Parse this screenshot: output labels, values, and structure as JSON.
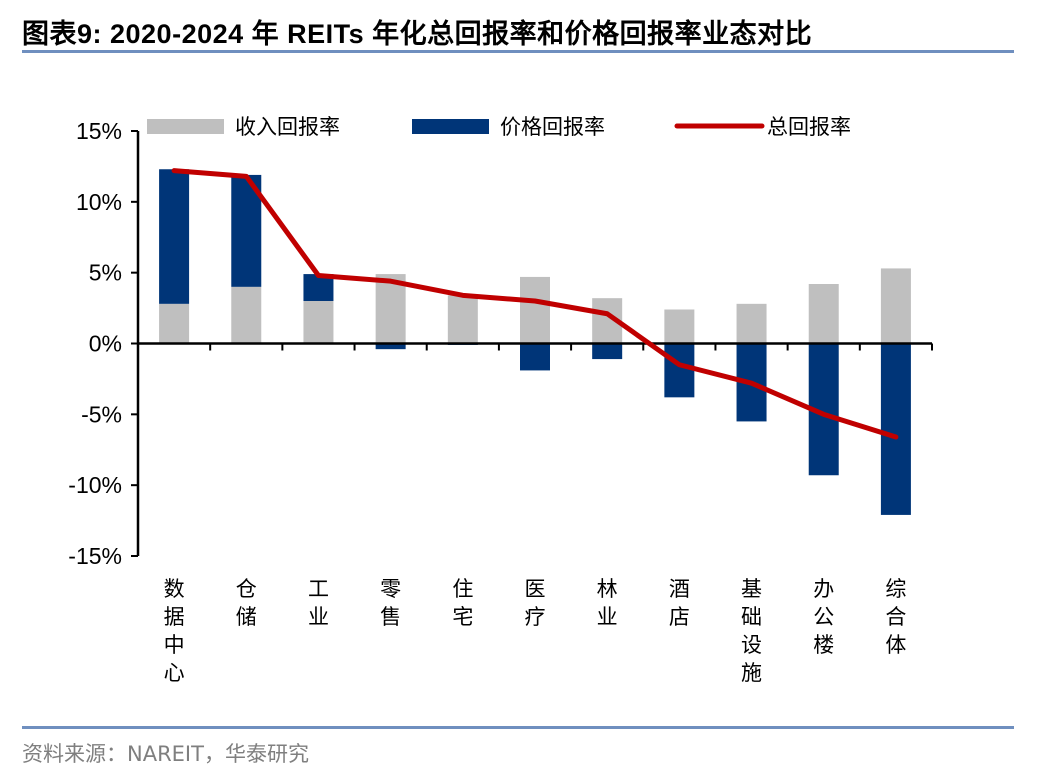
{
  "title": "图表9:   2020-2024 年 REITs 年化总回报率和价格回报率业态对比",
  "source": "资料来源：NAREIT，华泰研究",
  "chart_data": {
    "type": "bar",
    "stacked": true,
    "title": "2020-2024 年 REITs 年化总回报率和价格回报率业态对比",
    "xlabel": "",
    "ylabel": "",
    "ylim": [
      -15,
      15
    ],
    "yticks": [
      15,
      10,
      5,
      0,
      -5,
      -10,
      -15
    ],
    "ytick_labels": [
      "15%",
      "10%",
      "5%",
      "0%",
      "-5%",
      "-10%",
      "-15%"
    ],
    "legend_position": "top",
    "grid": false,
    "categories": [
      "数据中心",
      "仓储",
      "工业",
      "零售",
      "住宅",
      "医疗",
      "林业",
      "酒店",
      "基础设施",
      "办公楼",
      "综合体"
    ],
    "series": [
      {
        "name": "收入回报率",
        "type": "bar",
        "color": "#bfbfbf",
        "values": [
          2.8,
          4.0,
          3.0,
          4.9,
          3.4,
          4.7,
          3.2,
          2.4,
          2.8,
          4.2,
          5.3
        ]
      },
      {
        "name": "价格回报率",
        "type": "bar",
        "color": "#003578",
        "values": [
          9.5,
          7.9,
          1.9,
          -0.4,
          -0.1,
          -1.9,
          -1.1,
          -3.8,
          -5.5,
          -9.3,
          -12.1
        ]
      },
      {
        "name": "总回报率",
        "type": "line",
        "color": "#c00000",
        "values": [
          12.2,
          11.8,
          4.8,
          4.4,
          3.4,
          3.0,
          2.1,
          -1.5,
          -2.8,
          -5.0,
          -6.6
        ]
      }
    ]
  }
}
